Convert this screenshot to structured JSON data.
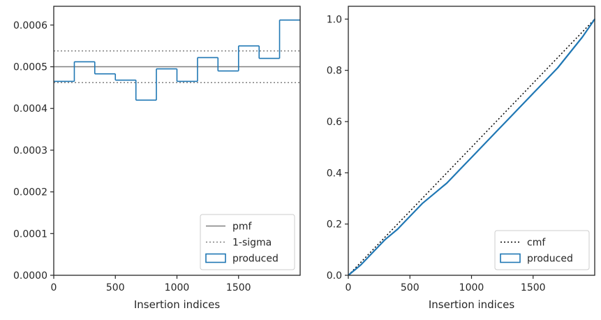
{
  "chart_data": [
    {
      "type": "line",
      "title": "",
      "xlabel": "Insertion indices",
      "ylabel": "",
      "xlim": [
        0,
        2000
      ],
      "ylim": [
        0,
        0.000645
      ],
      "xticks": [
        0,
        500,
        1000,
        1500
      ],
      "xtick_labels": [
        "0",
        "500",
        "1000",
        "1500"
      ],
      "yticks": [
        0,
        0.0001,
        0.0002,
        0.0003,
        0.0004,
        0.0005,
        0.0006
      ],
      "ytick_labels": [
        "0.0000",
        "0.0001",
        "0.0002",
        "0.0003",
        "0.0004",
        "0.0005",
        "0.0006"
      ],
      "grid": false,
      "legend_position": "lower-right",
      "series": [
        {
          "name": "pmf",
          "style": "solid",
          "color": "#808080",
          "x": [
            0,
            2000
          ],
          "y": [
            0.0005,
            0.0005
          ]
        },
        {
          "name": "1-sigma",
          "style": "dotted",
          "color": "#808080",
          "upper": 0.000538,
          "lower": 0.000462,
          "x": [
            0,
            2000
          ]
        },
        {
          "name": "produced",
          "style": "step-histogram",
          "color": "#1f77b4",
          "bin_edges": [
            0,
            167,
            333,
            500,
            667,
            833,
            1000,
            1167,
            1333,
            1500,
            1667,
            1833,
            2000
          ],
          "values": [
            0.000465,
            0.000512,
            0.000483,
            0.000468,
            0.00042,
            0.000495,
            0.000465,
            0.000522,
            0.00049,
            0.00055,
            0.00052,
            0.000612
          ]
        }
      ]
    },
    {
      "type": "line",
      "title": "",
      "xlabel": "Insertion indices",
      "ylabel": "",
      "xlim": [
        0,
        2000
      ],
      "ylim": [
        0,
        1.05
      ],
      "xticks": [
        0,
        500,
        1000,
        1500
      ],
      "xtick_labels": [
        "0",
        "500",
        "1000",
        "1500"
      ],
      "yticks": [
        0,
        0.2,
        0.4,
        0.6,
        0.8,
        1.0
      ],
      "ytick_labels": [
        "0.0",
        "0.2",
        "0.4",
        "0.6",
        "0.8",
        "1.0"
      ],
      "grid": false,
      "legend_position": "lower-right",
      "series": [
        {
          "name": "cmf",
          "style": "dotted",
          "color": "#000000",
          "x": [
            0,
            2000
          ],
          "y": [
            0,
            1
          ]
        },
        {
          "name": "produced",
          "style": "solid",
          "color": "#1f77b4",
          "x": [
            0,
            100,
            200,
            300,
            400,
            500,
            600,
            700,
            800,
            900,
            1000,
            1100,
            1200,
            1300,
            1400,
            1500,
            1600,
            1700,
            1800,
            1900,
            2000
          ],
          "y": [
            0,
            0.04,
            0.09,
            0.14,
            0.18,
            0.23,
            0.28,
            0.32,
            0.36,
            0.41,
            0.46,
            0.51,
            0.56,
            0.61,
            0.66,
            0.71,
            0.76,
            0.81,
            0.87,
            0.93,
            1.0
          ]
        }
      ]
    }
  ]
}
